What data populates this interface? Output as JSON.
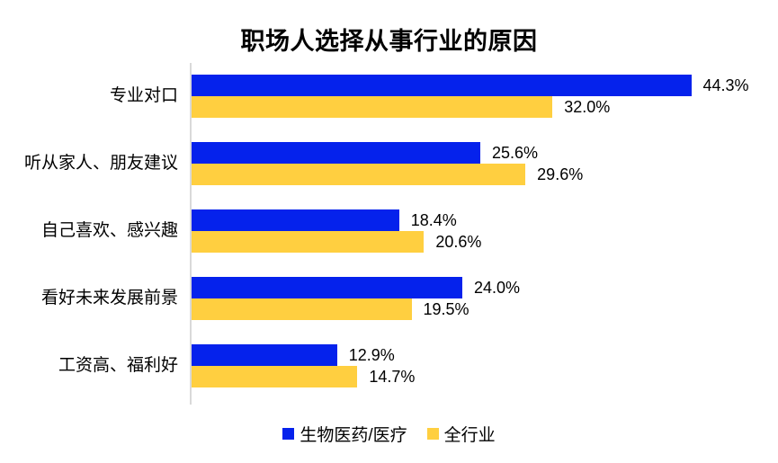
{
  "title": "职场人选择从事行业的原因",
  "colors": {
    "series_biomedical": "#0522EC",
    "series_all_industry": "#FFCF40",
    "axis_line": "#D9D9D9",
    "text": "#000000",
    "background": "#FFFFFF"
  },
  "legend": {
    "items": [
      {
        "label": "生物医药/医疗",
        "color": "#0522EC"
      },
      {
        "label": "全行业",
        "color": "#FFCF40"
      }
    ]
  },
  "chart_data": {
    "type": "bar",
    "orientation": "horizontal",
    "title": "职场人选择从事行业的原因",
    "categories": [
      "专业对口",
      "听从家人、朋友建议",
      "自己喜欢、感兴趣",
      "看好未来发展前景",
      "工资高、福利好"
    ],
    "series": [
      {
        "name": "生物医药/医疗",
        "color": "#0522EC",
        "values": [
          44.3,
          25.6,
          18.4,
          24.0,
          12.9
        ],
        "labels": [
          "44.3%",
          "25.6%",
          "18.4%",
          "24.0%",
          "12.9%"
        ]
      },
      {
        "name": "全行业",
        "color": "#FFCF40",
        "values": [
          32.0,
          29.6,
          20.6,
          19.5,
          14.7
        ],
        "labels": [
          "32.0%",
          "29.6%",
          "20.6%",
          "19.5%",
          "14.7%"
        ]
      }
    ],
    "xlabel": "",
    "ylabel": "",
    "xlim": [
      0,
      50
    ],
    "grid": false,
    "legend_position": "bottom",
    "value_labels": true
  }
}
